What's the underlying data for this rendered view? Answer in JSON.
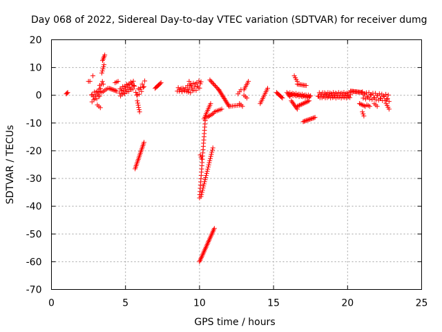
{
  "chart_data": {
    "type": "scatter",
    "title": "Day 068 of 2022, Sidereal Day-to-day VTEC variation (SDTVAR) for receiver dumg",
    "xlabel": "GPS time / hours",
    "ylabel": "SDTVAR / TECUs",
    "xlim": [
      0,
      25
    ],
    "ylim": [
      -70,
      20
    ],
    "xticks": [
      0,
      5,
      10,
      15,
      20,
      25
    ],
    "xtick_labels": [
      "0",
      "5",
      "10",
      "15",
      "20",
      "25"
    ],
    "yticks": [
      20,
      10,
      0,
      -10,
      -20,
      -30,
      -40,
      -50,
      -60,
      -70
    ],
    "ytick_labels": [
      "20",
      "10",
      "0",
      "-10",
      "-20",
      "-30",
      "-40",
      "-50",
      "-60",
      "-70"
    ],
    "grid": true,
    "marker": "+",
    "marker_color": "#ff0000",
    "series": [
      {
        "name": "SDTVAR",
        "tracks": [
          {
            "x": [
              1.0,
              1.1
            ],
            "y": [
              0.5,
              1.0
            ],
            "steps": 3
          },
          {
            "x": [
              2.5,
              2.6
            ],
            "y": [
              5.0,
              5.0
            ],
            "steps": 2
          },
          {
            "x": [
              2.7,
              3.3
            ],
            "y": [
              -1.0,
              1.0
            ],
            "steps": 16,
            "jitter": 3.0
          },
          {
            "x": [
              2.8,
              2.8
            ],
            "y": [
              7.0,
              7.0
            ],
            "steps": 1
          },
          {
            "x": [
              3.1,
              3.3
            ],
            "y": [
              -3.5,
              -4.5
            ],
            "steps": 3
          },
          {
            "x": [
              3.2,
              3.5
            ],
            "y": [
              2.0,
              5.0
            ],
            "steps": 6,
            "jitter": 2.0
          },
          {
            "x": [
              3.4,
              3.55
            ],
            "y": [
              8.0,
              11.0
            ],
            "steps": 5
          },
          {
            "x": [
              3.45,
              3.6
            ],
            "y": [
              12.5,
              14.5
            ],
            "steps": 5
          },
          {
            "x": [
              3.4,
              3.8
            ],
            "y": [
              1.0,
              2.5
            ],
            "steps": 5
          },
          {
            "x": [
              3.9,
              4.4
            ],
            "y": [
              2.5,
              1.5
            ],
            "steps": 8
          },
          {
            "x": [
              4.3,
              4.5
            ],
            "y": [
              4.5,
              5.0
            ],
            "steps": 3
          },
          {
            "x": [
              4.6,
              5.6
            ],
            "y": [
              1.0,
              4.0
            ],
            "steps": 30,
            "jitter": 3.0
          },
          {
            "x": [
              5.7,
              6.3
            ],
            "y": [
              0.0,
              4.0
            ],
            "steps": 12,
            "jitter": 2.5
          },
          {
            "x": [
              5.8,
              5.95
            ],
            "y": [
              -2.0,
              -6.0
            ],
            "steps": 6
          },
          {
            "x": [
              5.65,
              6.25
            ],
            "y": [
              -26.5,
              -17.0
            ],
            "steps": 18
          },
          {
            "x": [
              7.0,
              7.4
            ],
            "y": [
              2.5,
              4.5
            ],
            "steps": 8
          },
          {
            "x": [
              8.5,
              9.2
            ],
            "y": [
              2.0,
              2.0
            ],
            "steps": 12,
            "jitter": 1.5
          },
          {
            "x": [
              9.3,
              9.4
            ],
            "y": [
              5.0,
              4.0
            ],
            "steps": 2
          },
          {
            "x": [
              9.2,
              10.1
            ],
            "y": [
              2.0,
              4.0
            ],
            "steps": 20,
            "jitter": 3.0
          },
          {
            "x": [
              10.0,
              10.4
            ],
            "y": [
              -37.0,
              -8.0
            ],
            "steps": 26
          },
          {
            "x": [
              10.05,
              10.15
            ],
            "y": [
              -21.5,
              -23.0
            ],
            "steps": 3
          },
          {
            "x": [
              10.1,
              10.9
            ],
            "y": [
              -36.5,
              -19.0
            ],
            "steps": 24
          },
          {
            "x": [
              10.3,
              10.75
            ],
            "y": [
              -8.5,
              -3.0
            ],
            "steps": 10
          },
          {
            "x": [
              10.5,
              10.95
            ],
            "y": [
              -8.0,
              -6.5
            ],
            "steps": 6
          },
          {
            "x": [
              10.7,
              11.3
            ],
            "y": [
              5.5,
              2.0
            ],
            "steps": 10
          },
          {
            "x": [
              11.3,
              12.0
            ],
            "y": [
              2.0,
              -4.0
            ],
            "steps": 16
          },
          {
            "x": [
              11.0,
              11.5
            ],
            "y": [
              -6.0,
              -5.0
            ],
            "steps": 6
          },
          {
            "x": [
              12.0,
              12.8
            ],
            "y": [
              -4.0,
              -3.5
            ],
            "steps": 8
          },
          {
            "x": [
              10.0,
              11.0
            ],
            "y": [
              -60.0,
              -48.0
            ],
            "steps": 26
          },
          {
            "x": [
              12.6,
              12.8
            ],
            "y": [
              0.5,
              2.0
            ],
            "steps": 3
          },
          {
            "x": [
              12.7,
              12.9
            ],
            "y": [
              -3.0,
              -4.0
            ],
            "steps": 3
          },
          {
            "x": [
              13.0,
              13.3
            ],
            "y": [
              2.0,
              5.0
            ],
            "steps": 6
          },
          {
            "x": [
              13.0,
              13.2
            ],
            "y": [
              0.0,
              -1.0
            ],
            "steps": 3
          },
          {
            "x": [
              14.1,
              14.6
            ],
            "y": [
              -3.0,
              2.5
            ],
            "steps": 10
          },
          {
            "x": [
              15.2,
              15.6
            ],
            "y": [
              1.0,
              -1.0
            ],
            "steps": 8
          },
          {
            "x": [
              15.9,
              16.1
            ],
            "y": [
              1.0,
              -0.5
            ],
            "steps": 4
          },
          {
            "x": [
              16.0,
              17.5
            ],
            "y": [
              0.5,
              -0.5
            ],
            "steps": 30,
            "jitter": 1.0
          },
          {
            "x": [
              16.2,
              16.6
            ],
            "y": [
              -2.0,
              -5.0
            ],
            "steps": 8
          },
          {
            "x": [
              16.6,
              17.4
            ],
            "y": [
              -4.0,
              -2.0
            ],
            "steps": 12
          },
          {
            "x": [
              16.4,
              16.6
            ],
            "y": [
              7.0,
              5.0
            ],
            "steps": 4
          },
          {
            "x": [
              16.6,
              17.2
            ],
            "y": [
              4.0,
              3.5
            ],
            "steps": 8
          },
          {
            "x": [
              17.0,
              17.8
            ],
            "y": [
              -9.5,
              -8.0
            ],
            "steps": 12
          },
          {
            "x": [
              18.0,
              20.2
            ],
            "y": [
              0.0,
              0.0
            ],
            "steps": 50,
            "jitter": 2.0
          },
          {
            "x": [
              20.2,
              21.0
            ],
            "y": [
              1.5,
              1.0
            ],
            "steps": 14
          },
          {
            "x": [
              20.8,
              21.2
            ],
            "y": [
              -3.0,
              -4.0
            ],
            "steps": 6
          },
          {
            "x": [
              21.0,
              21.1
            ],
            "y": [
              -6.0,
              -7.5
            ],
            "steps": 3
          },
          {
            "x": [
              21.0,
              22.8
            ],
            "y": [
              0.0,
              -1.0
            ],
            "steps": 34,
            "jitter": 2.5
          },
          {
            "x": [
              21.3,
              21.5
            ],
            "y": [
              -3.5,
              -4.0
            ],
            "steps": 3
          },
          {
            "x": [
              21.8,
              22.0
            ],
            "y": [
              -3.0,
              -4.0
            ],
            "steps": 3
          },
          {
            "x": [
              22.6,
              22.8
            ],
            "y": [
              -3.0,
              -5.0
            ],
            "steps": 4
          }
        ]
      }
    ]
  }
}
